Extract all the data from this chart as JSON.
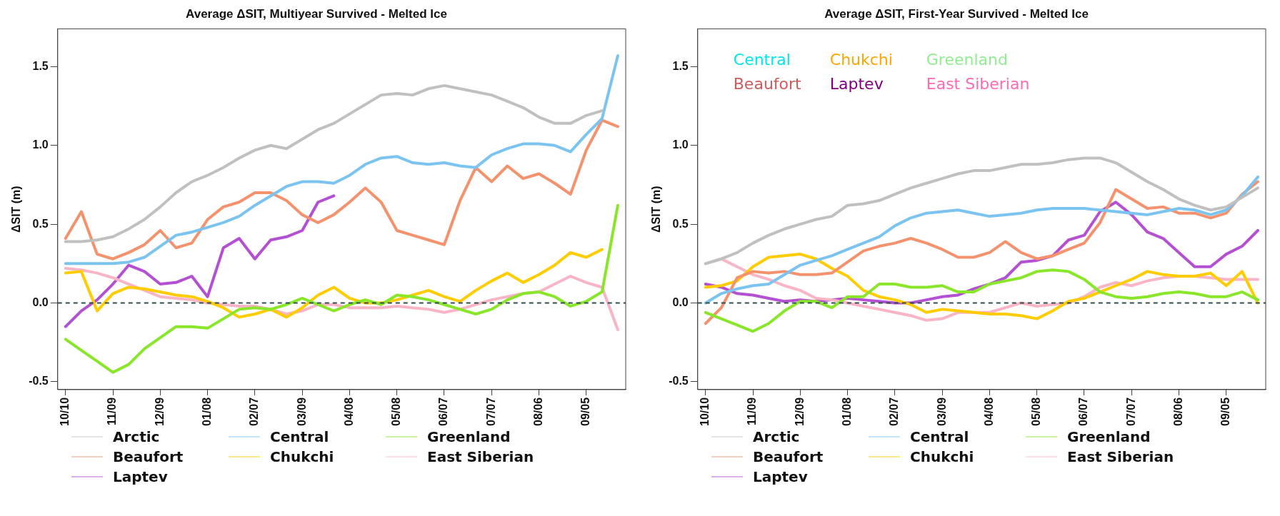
{
  "chart_data": [
    {
      "type": "line",
      "title": "Average ΔSIT, Multiyear Survived - Melted Ice",
      "ylabel": "ΔSIT (m)",
      "legend": "bottom",
      "marker": "none",
      "categories": [
        "10/10",
        null,
        null,
        "11/09",
        null,
        null,
        "12/09",
        null,
        null,
        "01/08",
        null,
        null,
        "02/07",
        null,
        null,
        "03/09",
        null,
        null,
        "04/08",
        null,
        null,
        "05/08",
        null,
        null,
        "06/07",
        null,
        null,
        "07/07",
        null,
        null,
        "08/06",
        null,
        null,
        "09/05",
        null,
        null
      ],
      "ylim": [
        -0.55,
        1.74
      ],
      "yticks": [
        {
          "value": -0.5,
          "label": "-0.5"
        },
        {
          "value": 0,
          "label": "0.0"
        },
        {
          "value": 0.5,
          "label": "0.5"
        },
        {
          "value": 1,
          "label": "1.0"
        },
        {
          "value": 1.5,
          "label": "1.5"
        }
      ],
      "ref_lines": [
        {
          "axis": "y",
          "value": 0,
          "color": "#2f4f4f",
          "line_style": "dashed"
        }
      ],
      "series": [
        {
          "name": "Arctic",
          "color": "#c0c0c0",
          "values": [
            0.39,
            0.39,
            0.4,
            0.42,
            0.47,
            0.53,
            0.61,
            0.7,
            0.77,
            0.81,
            0.86,
            0.92,
            0.97,
            1.0,
            0.98,
            1.04,
            1.1,
            1.14,
            1.2,
            1.26,
            1.32,
            1.33,
            1.32,
            1.36,
            1.38,
            1.36,
            1.34,
            1.32,
            1.28,
            1.24,
            1.18,
            1.14,
            1.14,
            1.19,
            1.22,
            null
          ]
        },
        {
          "name": "Central",
          "color": "#7cc4f0",
          "values": [
            0.25,
            0.25,
            0.25,
            0.25,
            0.26,
            0.29,
            0.36,
            0.43,
            0.45,
            0.48,
            0.51,
            0.55,
            0.62,
            0.68,
            0.74,
            0.77,
            0.77,
            0.76,
            0.81,
            0.88,
            0.92,
            0.93,
            0.89,
            0.88,
            0.89,
            0.87,
            0.86,
            0.94,
            0.98,
            1.01,
            1.01,
            1.0,
            0.96,
            1.07,
            1.17,
            1.57
          ]
        },
        {
          "name": "Greenland",
          "color": "#8ae62a",
          "values": [
            -0.23,
            -0.3,
            -0.37,
            -0.44,
            -0.39,
            -0.29,
            -0.22,
            -0.15,
            -0.15,
            -0.16,
            -0.1,
            -0.04,
            -0.03,
            -0.04,
            -0.01,
            0.03,
            -0.01,
            -0.05,
            -0.01,
            0.02,
            -0.01,
            0.05,
            0.04,
            0.02,
            -0.01,
            -0.04,
            -0.07,
            -0.04,
            0.02,
            0.06,
            0.07,
            0.04,
            -0.02,
            0.01,
            0.07,
            0.62
          ]
        },
        {
          "name": "Beaufort",
          "color": "#f4926e",
          "values": [
            0.41,
            0.58,
            0.31,
            0.28,
            0.32,
            0.37,
            0.46,
            0.35,
            0.38,
            0.53,
            0.61,
            0.64,
            0.7,
            0.7,
            0.65,
            0.56,
            0.51,
            0.56,
            0.64,
            0.73,
            0.64,
            0.46,
            0.43,
            0.4,
            0.37,
            0.65,
            0.86,
            0.77,
            0.87,
            0.79,
            0.82,
            0.76,
            0.69,
            0.97,
            1.16,
            1.12
          ]
        },
        {
          "name": "Chukchi",
          "color": "#ffcc00",
          "values": [
            0.19,
            0.2,
            -0.05,
            0.06,
            0.1,
            0.09,
            0.07,
            0.05,
            0.04,
            0.01,
            -0.03,
            -0.09,
            -0.07,
            -0.04,
            -0.09,
            -0.03,
            0.05,
            0.1,
            0.03,
            0.0,
            0.0,
            0.02,
            0.05,
            0.08,
            0.04,
            0.01,
            0.08,
            0.14,
            0.19,
            0.13,
            0.18,
            0.24,
            0.32,
            0.29,
            0.34,
            null
          ]
        },
        {
          "name": "East Siberian",
          "color": "#f9b5c5",
          "values": [
            0.22,
            0.21,
            0.19,
            0.16,
            0.12,
            0.08,
            0.04,
            0.03,
            0.02,
            0.0,
            -0.01,
            -0.02,
            -0.02,
            -0.04,
            -0.07,
            -0.05,
            -0.01,
            -0.01,
            -0.03,
            -0.03,
            -0.03,
            -0.02,
            -0.03,
            -0.04,
            -0.06,
            -0.04,
            -0.01,
            0.02,
            0.04,
            0.06,
            0.07,
            0.12,
            0.17,
            0.13,
            0.1,
            -0.17
          ]
        },
        {
          "name": "Laptev",
          "color": "#b450d2",
          "values": [
            -0.15,
            -0.05,
            0.02,
            0.12,
            0.24,
            0.2,
            0.12,
            0.13,
            0.17,
            0.04,
            0.35,
            0.41,
            0.28,
            0.4,
            0.42,
            0.46,
            0.64,
            0.68,
            null,
            null,
            null,
            null,
            null,
            null,
            null,
            null,
            null,
            null,
            null,
            null,
            null,
            null,
            null,
            null,
            null,
            null
          ]
        }
      ]
    },
    {
      "type": "line",
      "title": "Average ΔSIT, First-Year Survived - Melted Ice",
      "ylabel": "ΔSIT (m)",
      "legend": "bottom",
      "marker": "none",
      "categories": [
        "10/10",
        null,
        null,
        "11/09",
        null,
        null,
        "12/09",
        null,
        null,
        "01/08",
        null,
        null,
        "02/07",
        null,
        null,
        "03/09",
        null,
        null,
        "04/08",
        null,
        null,
        "05/08",
        null,
        null,
        "06/07",
        null,
        null,
        "07/07",
        null,
        null,
        "08/06",
        null,
        null,
        "09/05",
        null,
        null
      ],
      "ylim": [
        -0.55,
        1.74
      ],
      "yticks": [
        {
          "value": -0.5,
          "label": "-0.5"
        },
        {
          "value": 0,
          "label": "0.0"
        },
        {
          "value": 0.5,
          "label": "0.5"
        },
        {
          "value": 1,
          "label": "1.0"
        },
        {
          "value": 1.5,
          "label": "1.5"
        }
      ],
      "ref_lines": [
        {
          "axis": "y",
          "value": 0,
          "color": "#2f4f4f",
          "line_style": "dashed"
        }
      ],
      "annotations": [
        "Central",
        "Chukchi",
        "Greenland",
        "Beaufort",
        "Laptev",
        "East Siberian"
      ],
      "series": [
        {
          "name": "Arctic",
          "color": "#c0c0c0",
          "values": [
            0.25,
            0.28,
            0.32,
            0.38,
            0.43,
            0.47,
            0.5,
            0.53,
            0.55,
            0.62,
            0.63,
            0.65,
            0.69,
            0.73,
            0.76,
            0.79,
            0.82,
            0.84,
            0.84,
            0.86,
            0.88,
            0.88,
            0.89,
            0.91,
            0.92,
            0.92,
            0.89,
            0.83,
            0.77,
            0.72,
            0.66,
            0.62,
            0.59,
            0.61,
            0.67,
            0.73
          ]
        },
        {
          "name": "Central",
          "color": "#7cc4f0",
          "values": [
            0.0,
            0.06,
            0.09,
            0.11,
            0.12,
            0.18,
            0.24,
            0.27,
            0.3,
            0.34,
            0.38,
            0.42,
            0.49,
            0.54,
            0.57,
            0.58,
            0.59,
            0.57,
            0.55,
            0.56,
            0.57,
            0.59,
            0.6,
            0.6,
            0.6,
            0.59,
            0.58,
            0.57,
            0.56,
            0.58,
            0.6,
            0.59,
            0.56,
            0.59,
            0.68,
            0.8
          ]
        },
        {
          "name": "Greenland",
          "color": "#8ae62a",
          "values": [
            -0.06,
            -0.1,
            -0.14,
            -0.18,
            -0.13,
            -0.05,
            0.01,
            0.01,
            -0.03,
            0.04,
            0.04,
            0.12,
            0.12,
            0.1,
            0.1,
            0.11,
            0.07,
            0.07,
            0.12,
            0.14,
            0.16,
            0.2,
            0.21,
            0.2,
            0.15,
            0.07,
            0.04,
            0.03,
            0.04,
            0.06,
            0.07,
            0.06,
            0.04,
            0.04,
            0.07,
            0.02
          ]
        },
        {
          "name": "Beaufort",
          "color": "#f4926e",
          "values": [
            -0.13,
            -0.03,
            0.16,
            0.2,
            0.19,
            0.2,
            0.18,
            0.18,
            0.19,
            0.26,
            0.33,
            0.36,
            0.38,
            0.41,
            0.38,
            0.34,
            0.29,
            0.29,
            0.32,
            0.39,
            0.32,
            0.28,
            0.3,
            0.34,
            0.38,
            0.51,
            0.72,
            0.66,
            0.6,
            0.61,
            0.57,
            0.57,
            0.54,
            0.57,
            0.69,
            0.77
          ]
        },
        {
          "name": "Chukchi",
          "color": "#ffcc00",
          "values": [
            0.1,
            0.11,
            0.14,
            0.23,
            0.29,
            0.3,
            0.31,
            0.28,
            0.22,
            0.17,
            0.08,
            0.04,
            0.02,
            -0.01,
            -0.06,
            -0.04,
            -0.05,
            -0.06,
            -0.07,
            -0.07,
            -0.08,
            -0.1,
            -0.05,
            0.01,
            0.03,
            0.07,
            0.11,
            0.15,
            0.2,
            0.18,
            0.17,
            0.17,
            0.19,
            0.11,
            0.2,
            0.0
          ]
        },
        {
          "name": "East Siberian",
          "color": "#f9b5c5",
          "values": [
            0.25,
            0.28,
            0.23,
            0.18,
            0.15,
            0.11,
            0.08,
            0.03,
            0.02,
            0.0,
            -0.02,
            -0.04,
            -0.06,
            -0.08,
            -0.11,
            -0.1,
            -0.06,
            -0.06,
            -0.06,
            -0.03,
            0.0,
            -0.02,
            -0.01,
            0.0,
            0.04,
            0.1,
            0.13,
            0.11,
            0.14,
            0.16,
            0.17,
            0.17,
            0.16,
            0.15,
            0.15,
            0.15
          ]
        },
        {
          "name": "Laptev",
          "color": "#b450d2",
          "values": [
            0.12,
            0.1,
            0.06,
            0.05,
            0.03,
            0.01,
            0.02,
            0.01,
            0.02,
            0.03,
            0.02,
            0.01,
            0.0,
            0.0,
            0.02,
            0.04,
            0.05,
            0.09,
            0.12,
            0.16,
            0.26,
            0.27,
            0.3,
            0.4,
            0.43,
            0.58,
            0.64,
            0.56,
            0.45,
            0.41,
            0.32,
            0.23,
            0.23,
            0.31,
            0.36,
            0.46
          ]
        }
      ]
    }
  ]
}
